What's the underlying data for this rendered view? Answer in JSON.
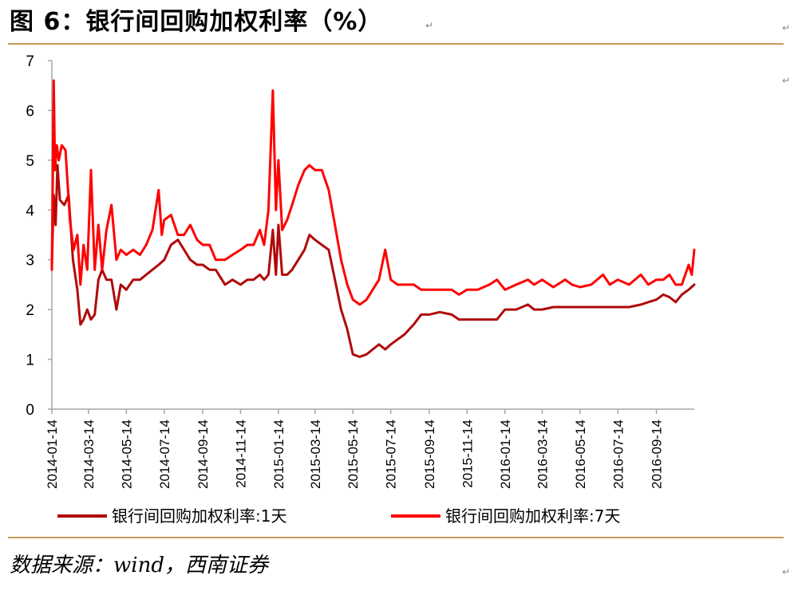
{
  "header": {
    "title": "图 6：银行间回购加权利率（%）"
  },
  "footer": {
    "source": "数据来源：wind，西南证券"
  },
  "colors": {
    "rule": "#c99a5b",
    "series_1d": "#b00a0a",
    "series_7d": "#ff0000",
    "axis": "#a6a6a6"
  },
  "chart_data": {
    "type": "line",
    "title": "",
    "xlabel": "",
    "ylabel": "",
    "ylim": [
      0,
      7
    ],
    "yticks": [
      0,
      1,
      2,
      3,
      4,
      5,
      6,
      7
    ],
    "x_range": [
      "2014-01-14",
      "2016-11-14"
    ],
    "xticks": [
      "2014-01-14",
      "2014-03-14",
      "2014-05-14",
      "2014-07-14",
      "2014-09-14",
      "2014-11-14",
      "2015-01-14",
      "2015-03-14",
      "2015-05-14",
      "2015-07-14",
      "2015-09-14",
      "2015-11-14",
      "2016-01-14",
      "2016-03-14",
      "2016-05-14",
      "2016-07-14",
      "2016-09-14"
    ],
    "grid": false,
    "legend": "bottom",
    "series": [
      {
        "name": "银行间回购加权利率:1天",
        "x": [
          "2014-01-14",
          "2014-01-17",
          "2014-01-20",
          "2014-01-23",
          "2014-01-27",
          "2014-02-03",
          "2014-02-10",
          "2014-02-17",
          "2014-02-24",
          "2014-03-01",
          "2014-03-06",
          "2014-03-12",
          "2014-03-18",
          "2014-03-24",
          "2014-03-30",
          "2014-04-05",
          "2014-04-12",
          "2014-04-20",
          "2014-04-28",
          "2014-05-05",
          "2014-05-14",
          "2014-05-25",
          "2014-06-05",
          "2014-06-15",
          "2014-06-25",
          "2014-07-05",
          "2014-07-14",
          "2014-07-25",
          "2014-08-05",
          "2014-08-15",
          "2014-08-25",
          "2014-09-05",
          "2014-09-14",
          "2014-09-25",
          "2014-10-05",
          "2014-10-20",
          "2014-11-01",
          "2014-11-14",
          "2014-11-25",
          "2014-12-05",
          "2014-12-15",
          "2014-12-22",
          "2014-12-29",
          "2015-01-05",
          "2015-01-10",
          "2015-01-14",
          "2015-01-20",
          "2015-01-28",
          "2015-02-05",
          "2015-02-15",
          "2015-02-25",
          "2015-03-05",
          "2015-03-14",
          "2015-03-25",
          "2015-04-05",
          "2015-04-15",
          "2015-04-25",
          "2015-05-05",
          "2015-05-14",
          "2015-05-25",
          "2015-06-05",
          "2015-06-15",
          "2015-06-25",
          "2015-07-05",
          "2015-07-14",
          "2015-07-25",
          "2015-08-05",
          "2015-08-20",
          "2015-09-01",
          "2015-09-14",
          "2015-10-01",
          "2015-10-20",
          "2015-11-01",
          "2015-11-14",
          "2015-12-01",
          "2015-12-20",
          "2016-01-01",
          "2016-01-14",
          "2016-02-01",
          "2016-02-20",
          "2016-03-01",
          "2016-03-14",
          "2016-04-01",
          "2016-04-20",
          "2016-05-01",
          "2016-05-14",
          "2016-06-01",
          "2016-06-20",
          "2016-07-01",
          "2016-07-14",
          "2016-08-01",
          "2016-08-20",
          "2016-09-01",
          "2016-09-14",
          "2016-09-25",
          "2016-10-05",
          "2016-10-15",
          "2016-10-25",
          "2016-11-05",
          "2016-11-14"
        ],
        "values": [
          2.9,
          4.3,
          3.7,
          4.9,
          4.2,
          4.1,
          4.3,
          3.0,
          2.4,
          1.7,
          1.8,
          2.0,
          1.8,
          1.9,
          2.6,
          2.8,
          2.6,
          2.6,
          2.0,
          2.5,
          2.4,
          2.6,
          2.6,
          2.7,
          2.8,
          2.9,
          3.0,
          3.3,
          3.4,
          3.2,
          3.0,
          2.9,
          2.9,
          2.8,
          2.8,
          2.5,
          2.6,
          2.5,
          2.6,
          2.6,
          2.7,
          2.6,
          2.7,
          3.6,
          2.7,
          3.7,
          2.7,
          2.7,
          2.8,
          3.0,
          3.2,
          3.5,
          3.4,
          3.3,
          3.2,
          2.6,
          2.0,
          1.6,
          1.1,
          1.05,
          1.1,
          1.2,
          1.3,
          1.2,
          1.3,
          1.4,
          1.5,
          1.7,
          1.9,
          1.9,
          1.95,
          1.9,
          1.8,
          1.8,
          1.8,
          1.8,
          1.8,
          2.0,
          2.0,
          2.1,
          2.0,
          2.0,
          2.05,
          2.05,
          2.05,
          2.05,
          2.05,
          2.05,
          2.05,
          2.05,
          2.05,
          2.1,
          2.15,
          2.2,
          2.3,
          2.25,
          2.15,
          2.3,
          2.4,
          2.5
        ]
      },
      {
        "name": "银行间回购加权利率:7天",
        "x": [
          "2014-01-14",
          "2014-01-17",
          "2014-01-19",
          "2014-01-22",
          "2014-01-25",
          "2014-01-30",
          "2014-02-05",
          "2014-02-12",
          "2014-02-18",
          "2014-02-24",
          "2014-03-01",
          "2014-03-06",
          "2014-03-12",
          "2014-03-18",
          "2014-03-24",
          "2014-03-30",
          "2014-04-05",
          "2014-04-12",
          "2014-04-20",
          "2014-04-28",
          "2014-05-05",
          "2014-05-14",
          "2014-05-25",
          "2014-06-05",
          "2014-06-15",
          "2014-06-25",
          "2014-07-05",
          "2014-07-10",
          "2014-07-14",
          "2014-07-25",
          "2014-08-05",
          "2014-08-15",
          "2014-08-25",
          "2014-09-05",
          "2014-09-14",
          "2014-09-25",
          "2014-10-05",
          "2014-10-20",
          "2014-11-01",
          "2014-11-14",
          "2014-11-25",
          "2014-12-05",
          "2014-12-15",
          "2014-12-22",
          "2014-12-29",
          "2015-01-05",
          "2015-01-10",
          "2015-01-14",
          "2015-01-20",
          "2015-01-28",
          "2015-02-05",
          "2015-02-15",
          "2015-02-25",
          "2015-03-05",
          "2015-03-14",
          "2015-03-25",
          "2015-04-05",
          "2015-04-15",
          "2015-04-25",
          "2015-05-05",
          "2015-05-14",
          "2015-05-25",
          "2015-06-05",
          "2015-06-15",
          "2015-06-25",
          "2015-07-05",
          "2015-07-14",
          "2015-07-25",
          "2015-08-05",
          "2015-08-20",
          "2015-09-01",
          "2015-09-14",
          "2015-10-01",
          "2015-10-20",
          "2015-11-01",
          "2015-11-14",
          "2015-12-01",
          "2015-12-20",
          "2016-01-01",
          "2016-01-14",
          "2016-02-01",
          "2016-02-20",
          "2016-03-01",
          "2016-03-14",
          "2016-04-01",
          "2016-04-20",
          "2016-05-01",
          "2016-05-14",
          "2016-06-01",
          "2016-06-20",
          "2016-07-01",
          "2016-07-14",
          "2016-08-01",
          "2016-08-20",
          "2016-09-01",
          "2016-09-14",
          "2016-09-25",
          "2016-10-05",
          "2016-10-15",
          "2016-10-25",
          "2016-11-05",
          "2016-11-10",
          "2016-11-14"
        ],
        "values": [
          2.8,
          6.6,
          4.8,
          5.3,
          5.0,
          5.3,
          5.2,
          3.8,
          3.2,
          3.5,
          2.5,
          3.3,
          2.8,
          4.8,
          2.8,
          3.7,
          2.8,
          3.6,
          4.1,
          3.0,
          3.2,
          3.1,
          3.2,
          3.1,
          3.3,
          3.6,
          4.4,
          3.5,
          3.8,
          3.9,
          3.5,
          3.5,
          3.7,
          3.4,
          3.3,
          3.3,
          3.0,
          3.0,
          3.1,
          3.2,
          3.3,
          3.3,
          3.6,
          3.3,
          4.0,
          6.4,
          4.0,
          5.0,
          3.6,
          3.8,
          4.1,
          4.5,
          4.8,
          4.9,
          4.8,
          4.8,
          4.4,
          3.7,
          3.0,
          2.5,
          2.2,
          2.1,
          2.2,
          2.4,
          2.6,
          3.2,
          2.6,
          2.5,
          2.5,
          2.5,
          2.4,
          2.4,
          2.4,
          2.4,
          2.3,
          2.4,
          2.4,
          2.5,
          2.6,
          2.4,
          2.5,
          2.6,
          2.5,
          2.6,
          2.45,
          2.6,
          2.5,
          2.45,
          2.5,
          2.7,
          2.5,
          2.6,
          2.5,
          2.7,
          2.5,
          2.6,
          2.6,
          2.7,
          2.5,
          2.5,
          2.9,
          2.7,
          3.2
        ]
      }
    ]
  }
}
